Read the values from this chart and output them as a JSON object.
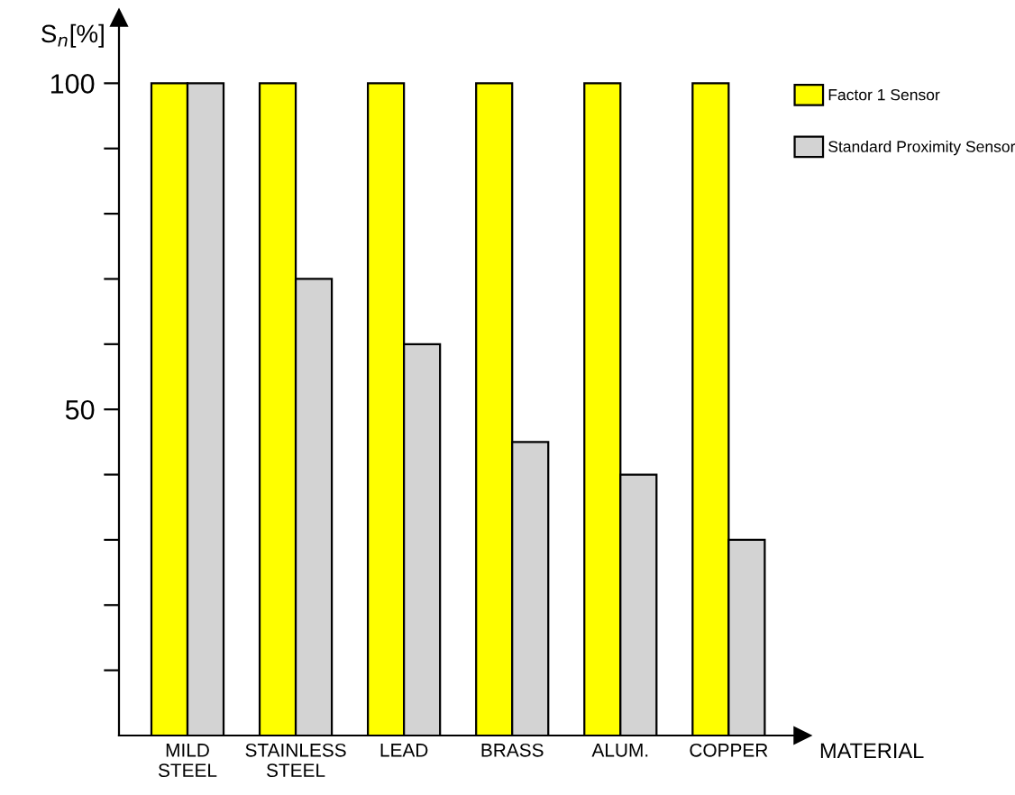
{
  "chart_data": {
    "type": "bar",
    "categories": [
      "MILD\nSTEEL",
      "STAINLESS\nSTEEL",
      "LEAD",
      "BRASS",
      "ALUM.",
      "COPPER"
    ],
    "series": [
      {
        "name": "Factor 1 Sensor",
        "color": "#ffff00",
        "values": [
          100,
          100,
          100,
          100,
          100,
          100
        ]
      },
      {
        "name": "Standard Proximity Sensor",
        "color": "#d3d3d3",
        "values": [
          100,
          70,
          60,
          45,
          40,
          30
        ]
      }
    ],
    "xlabel": "MATERIAL",
    "ylabel": "S$_{n}$[%]",
    "ylim": [
      0,
      110
    ],
    "yticks": [
      {
        "value": 10,
        "label": null
      },
      {
        "value": 20,
        "label": null
      },
      {
        "value": 30,
        "label": null
      },
      {
        "value": 40,
        "label": null
      },
      50,
      {
        "value": 60,
        "label": null
      },
      {
        "value": 70,
        "label": null
      },
      {
        "value": 80,
        "label": null
      },
      {
        "value": 90,
        "label": null
      },
      100
    ],
    "grid": false,
    "legend": "right"
  }
}
